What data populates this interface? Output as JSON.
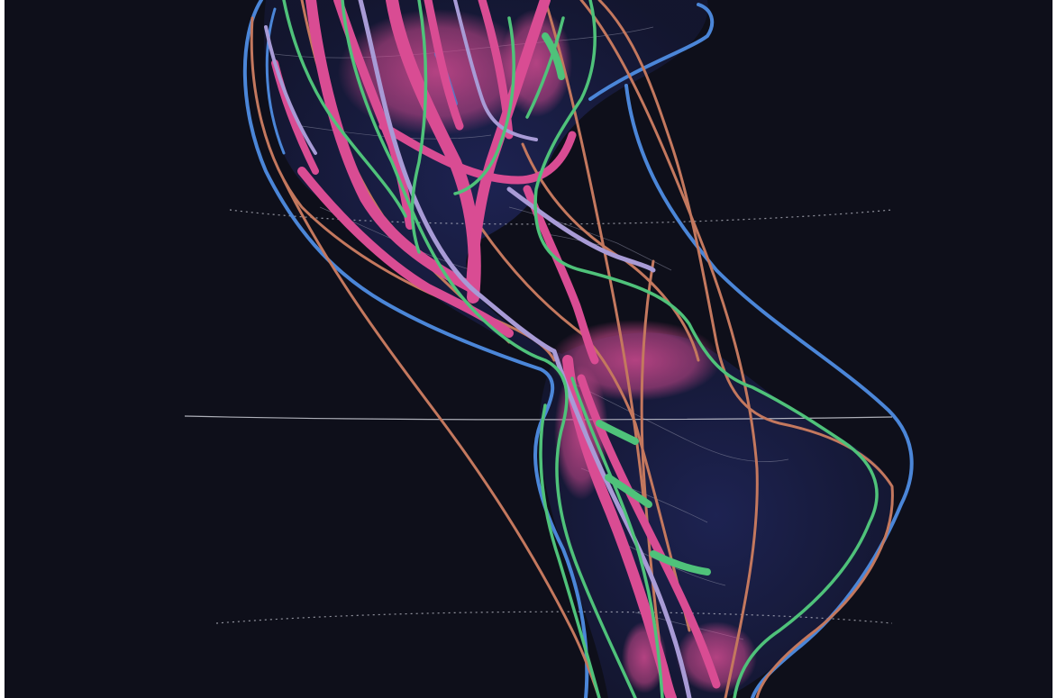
{
  "map": {
    "background_color": "#0e0f1a",
    "land_color": "#1a1f46",
    "route_colors": {
      "blue": "#4b86d8",
      "copper": "#c4785e",
      "green": "#4fc27a",
      "magenta": "#d94c93",
      "lavender": "#a89bd6"
    },
    "reference_lines": [
      "dotted-parallel-north",
      "equator",
      "dotted-parallel-south"
    ]
  }
}
